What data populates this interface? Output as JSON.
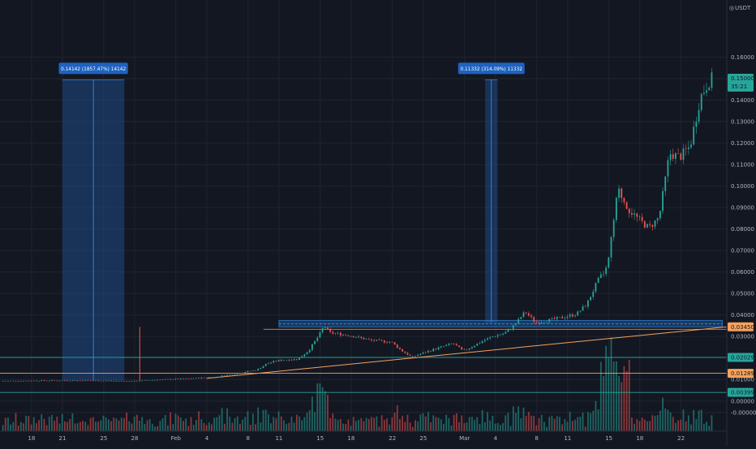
{
  "chart_data": {
    "type": "candlestick",
    "currency": "USDT",
    "x_ticks": [
      {
        "label": "18",
        "day": 18
      },
      {
        "label": "21",
        "day": 21
      },
      {
        "label": "25",
        "day": 25
      },
      {
        "label": "28",
        "day": 28
      },
      {
        "label": "Feb",
        "day": 32
      },
      {
        "label": "4",
        "day": 35
      },
      {
        "label": "8",
        "day": 39
      },
      {
        "label": "11",
        "day": 42
      },
      {
        "label": "15",
        "day": 46
      },
      {
        "label": "18",
        "day": 49
      },
      {
        "label": "22",
        "day": 53
      },
      {
        "label": "25",
        "day": 56
      },
      {
        "label": "Mar",
        "day": 60
      },
      {
        "label": "4",
        "day": 63
      },
      {
        "label": "8",
        "day": 67
      },
      {
        "label": "11",
        "day": 70
      },
      {
        "label": "15",
        "day": 74
      },
      {
        "label": "18",
        "day": 77
      },
      {
        "label": "22",
        "day": 81
      }
    ],
    "y_ticks": [
      "0.16000",
      "0.15000",
      "0.14000",
      "0.13000",
      "0.12000",
      "0.11000",
      "0.10000",
      "0.09000",
      "0.08000",
      "0.07000",
      "0.06000",
      "0.05000",
      "0.04000",
      "0.03000",
      "0.02000",
      "0.01000",
      "0.00000",
      "-0.00000"
    ],
    "y_range": [
      -0.005,
      0.17
    ],
    "price_badges": [
      {
        "value": 0.15,
        "label": "0.15000",
        "sub": "35:21",
        "color": "#26a69a"
      },
      {
        "value": 0.0345,
        "label": "0.03450",
        "color": "#f5a25d"
      },
      {
        "value": 0.02029,
        "label": "0.02029",
        "color": "#26a69a"
      },
      {
        "value": 0.01289,
        "label": "0.01289",
        "color": "#f5a25d"
      },
      {
        "value": 0.00399,
        "label": "0.00399",
        "color": "#26a69a"
      }
    ],
    "horizontal_lines": [
      {
        "value": 0.0345,
        "color": "#f5a25d"
      },
      {
        "value": 0.02029,
        "color": "#26a69a"
      },
      {
        "value": 0.01289,
        "color": "#f5a25d"
      },
      {
        "value": 0.00399,
        "color": "#26a69a"
      }
    ],
    "resistance_zone": {
      "from_day": 42,
      "to_day": 85,
      "low": 0.0345,
      "high": 0.0375
    },
    "trend_line": {
      "from_day": 35,
      "from_value": 0.0105,
      "to_day": 85,
      "to_value": 0.0345
    },
    "range_boxes": [
      {
        "from_day": 21,
        "to_day": 27,
        "low": 0.0095,
        "high": 0.1495,
        "label": "0.14142 (1857.47%) 14142"
      },
      {
        "from_day": 62,
        "to_day": 63.2,
        "low": 0.0365,
        "high": 0.1495,
        "label": "0.11332 (314.09%) 11332"
      }
    ],
    "spike": {
      "day": 28.5,
      "value": 0.0345
    },
    "price_path": [
      [
        15,
        0.0093
      ],
      [
        20,
        0.0095
      ],
      [
        25,
        0.0094
      ],
      [
        28,
        0.0092
      ],
      [
        30,
        0.0098
      ],
      [
        33,
        0.0103
      ],
      [
        36,
        0.0112
      ],
      [
        38,
        0.0128
      ],
      [
        40,
        0.0145
      ],
      [
        41,
        0.0175
      ],
      [
        42,
        0.0188
      ],
      [
        44,
        0.0195
      ],
      [
        45,
        0.0235
      ],
      [
        46,
        0.0305
      ],
      [
        46.5,
        0.035
      ],
      [
        47,
        0.0318
      ],
      [
        49,
        0.0305
      ],
      [
        51,
        0.0282
      ],
      [
        53,
        0.0275
      ],
      [
        54,
        0.0235
      ],
      [
        55,
        0.0205
      ],
      [
        57,
        0.0238
      ],
      [
        59,
        0.0268
      ],
      [
        60,
        0.0232
      ],
      [
        62,
        0.0282
      ],
      [
        63,
        0.0302
      ],
      [
        64,
        0.0315
      ],
      [
        65,
        0.0355
      ],
      [
        66,
        0.0415
      ],
      [
        67,
        0.0365
      ],
      [
        69,
        0.0382
      ],
      [
        71,
        0.0405
      ],
      [
        72,
        0.0452
      ],
      [
        73,
        0.0555
      ],
      [
        74,
        0.0625
      ],
      [
        75,
        0.0985
      ],
      [
        76,
        0.0895
      ],
      [
        77,
        0.0845
      ],
      [
        78,
        0.0805
      ],
      [
        79,
        0.0855
      ],
      [
        80,
        0.1152
      ],
      [
        81,
        0.1135
      ],
      [
        82,
        0.1185
      ],
      [
        83,
        0.1415
      ],
      [
        84,
        0.15
      ]
    ]
  }
}
